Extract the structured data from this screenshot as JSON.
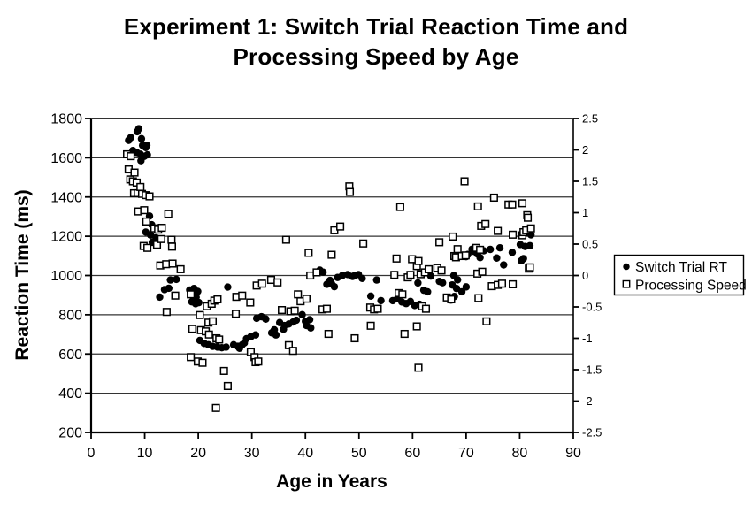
{
  "chart_data": {
    "type": "scatter",
    "title": "Experiment 1: Switch Trial Reaction Time and Processing Speed by Age",
    "xlabel": "Age in Years",
    "ylabel_left": "Reaction Time (ms)",
    "xlim": [
      0,
      90
    ],
    "xticks": [
      0,
      10,
      20,
      30,
      40,
      50,
      60,
      70,
      80,
      90
    ],
    "ylim_left": [
      200,
      1800
    ],
    "yticks_left": [
      200,
      400,
      600,
      800,
      1000,
      1200,
      1400,
      1600,
      1800
    ],
    "ylim_right": [
      -2.5,
      2.5
    ],
    "yticks_right": [
      "2.5",
      "2",
      "1.5",
      "1",
      "0.5",
      "0",
      "-0.5",
      "-1",
      "-1.5",
      "-2",
      "-2.5"
    ],
    "grid": "horizontal",
    "legend_position": "right-middle",
    "colors": {
      "marker": "#000000",
      "background": "#ffffff",
      "grid": "#333333"
    },
    "series": [
      {
        "name": "Switch Trial RT",
        "marker": "filled-circle",
        "axis": "left",
        "points": [
          [
            7.0,
            1689
          ],
          [
            7.4,
            1703
          ],
          [
            7.8,
            1637
          ],
          [
            8.5,
            1627
          ],
          [
            8.6,
            1733
          ],
          [
            8.9,
            1748
          ],
          [
            9.2,
            1618
          ],
          [
            9.3,
            1585
          ],
          [
            9.4,
            1697
          ],
          [
            9.6,
            1663
          ],
          [
            9.9,
            1607
          ],
          [
            10.2,
            1652
          ],
          [
            10.4,
            1664
          ],
          [
            10.5,
            1615
          ],
          [
            10.2,
            1221
          ],
          [
            10.9,
            1303
          ],
          [
            11.1,
            1206
          ],
          [
            11.3,
            1259
          ],
          [
            11.4,
            1169
          ],
          [
            12.1,
            1192
          ],
          [
            12.8,
            890
          ],
          [
            13.7,
            928
          ],
          [
            14.5,
            935
          ],
          [
            14.8,
            977
          ],
          [
            15.9,
            980
          ],
          [
            18.4,
            926
          ],
          [
            18.8,
            866
          ],
          [
            18.9,
            896
          ],
          [
            19.2,
            934
          ],
          [
            19.5,
            856
          ],
          [
            19.6,
            889
          ],
          [
            19.9,
            919
          ],
          [
            20.1,
            862
          ],
          [
            20.3,
            669
          ],
          [
            21.1,
            654
          ],
          [
            21.9,
            647
          ],
          [
            22.7,
            639
          ],
          [
            23.6,
            635
          ],
          [
            24.4,
            632
          ],
          [
            25.2,
            635
          ],
          [
            25.5,
            941
          ],
          [
            26.6,
            647
          ],
          [
            27.4,
            639
          ],
          [
            27.7,
            629
          ],
          [
            28.2,
            647
          ],
          [
            28.6,
            656
          ],
          [
            29.0,
            678
          ],
          [
            29.8,
            688
          ],
          [
            30.7,
            697
          ],
          [
            30.9,
            782
          ],
          [
            31.8,
            790
          ],
          [
            32.6,
            778
          ],
          [
            33.7,
            708
          ],
          [
            34.2,
            723
          ],
          [
            34.5,
            697
          ],
          [
            35.2,
            760
          ],
          [
            35.9,
            726
          ],
          [
            36.1,
            745
          ],
          [
            36.9,
            753
          ],
          [
            37.7,
            763
          ],
          [
            38.3,
            772
          ],
          [
            39.4,
            800
          ],
          [
            40.0,
            767
          ],
          [
            40.2,
            745
          ],
          [
            40.8,
            775
          ],
          [
            41.0,
            733
          ],
          [
            42.7,
            1027
          ],
          [
            43.3,
            1017
          ],
          [
            44.0,
            955
          ],
          [
            44.6,
            975
          ],
          [
            44.9,
            958
          ],
          [
            45.4,
            943
          ],
          [
            46.0,
            990
          ],
          [
            46.9,
            1000
          ],
          [
            47.9,
            1005
          ],
          [
            48.8,
            995
          ],
          [
            49.9,
            1005
          ],
          [
            49.2,
            1000
          ],
          [
            50.6,
            985
          ],
          [
            52.2,
            895
          ],
          [
            53.3,
            977
          ],
          [
            54.1,
            872
          ],
          [
            56.3,
            872
          ],
          [
            57.2,
            883
          ],
          [
            58.0,
            865
          ],
          [
            58.8,
            857
          ],
          [
            59.6,
            868
          ],
          [
            60.4,
            847
          ],
          [
            61.0,
            962
          ],
          [
            61.3,
            853
          ],
          [
            62.1,
            925
          ],
          [
            62.8,
            917
          ],
          [
            63.4,
            997
          ],
          [
            65.0,
            970
          ],
          [
            65.6,
            963
          ],
          [
            67.2,
            875
          ],
          [
            67.4,
            952
          ],
          [
            67.7,
            1000
          ],
          [
            67.8,
            893
          ],
          [
            68.2,
            934
          ],
          [
            68.4,
            978
          ],
          [
            69.2,
            917
          ],
          [
            70.0,
            942
          ],
          [
            70.0,
            1096
          ],
          [
            70.3,
            1107
          ],
          [
            71.1,
            1134
          ],
          [
            71.4,
            1123
          ],
          [
            72.1,
            1110
          ],
          [
            72.6,
            1091
          ],
          [
            73.3,
            1126
          ],
          [
            74.5,
            1133
          ],
          [
            75.7,
            1089
          ],
          [
            76.3,
            1141
          ],
          [
            77.0,
            1054
          ],
          [
            78.6,
            1118
          ],
          [
            80.1,
            1158
          ],
          [
            80.3,
            1075
          ],
          [
            80.7,
            1086
          ],
          [
            81.0,
            1148
          ],
          [
            81.9,
            1152
          ],
          [
            82.1,
            1207
          ]
        ]
      },
      {
        "name": "Processing Speed",
        "marker": "open-square",
        "axis": "right",
        "points": [
          [
            6.7,
            1.93
          ],
          [
            7.0,
            1.69
          ],
          [
            7.3,
            1.53
          ],
          [
            7.4,
            1.9
          ],
          [
            7.8,
            1.5
          ],
          [
            8.0,
            1.31
          ],
          [
            8.1,
            1.64
          ],
          [
            8.5,
            1.48
          ],
          [
            8.7,
            1.31
          ],
          [
            8.8,
            1.02
          ],
          [
            9.2,
            1.41
          ],
          [
            9.5,
            1.3
          ],
          [
            9.8,
            0.47
          ],
          [
            9.9,
            1.04
          ],
          [
            10.2,
            1.28
          ],
          [
            10.3,
            0.86
          ],
          [
            10.5,
            0.44
          ],
          [
            10.9,
            1.26
          ],
          [
            11.8,
            0.75
          ],
          [
            12.3,
            0.49
          ],
          [
            12.5,
            0.73
          ],
          [
            12.9,
            0.16
          ],
          [
            13.1,
            0.58
          ],
          [
            13.2,
            0.76
          ],
          [
            14.0,
            0.18
          ],
          [
            14.1,
            -0.58
          ],
          [
            14.4,
            0.98
          ],
          [
            15.0,
            0.57
          ],
          [
            15.1,
            0.46
          ],
          [
            15.2,
            0.19
          ],
          [
            15.7,
            -0.32
          ],
          [
            16.7,
            0.1
          ],
          [
            18.6,
            -0.3
          ],
          [
            18.6,
            -1.3
          ],
          [
            18.9,
            -0.85
          ],
          [
            19.9,
            -1.37
          ],
          [
            20.3,
            -0.63
          ],
          [
            20.5,
            -0.87
          ],
          [
            20.8,
            -1.39
          ],
          [
            21.4,
            -0.89
          ],
          [
            21.6,
            -0.49
          ],
          [
            21.9,
            -0.75
          ],
          [
            22.0,
            -0.94
          ],
          [
            22.5,
            -0.45
          ],
          [
            22.7,
            -0.73
          ],
          [
            23.0,
            -0.4
          ],
          [
            23.3,
            -2.11
          ],
          [
            23.4,
            -1.0
          ],
          [
            23.6,
            -0.38
          ],
          [
            23.9,
            -1.02
          ],
          [
            24.8,
            -1.52
          ],
          [
            25.5,
            -1.76
          ],
          [
            27.0,
            -0.61
          ],
          [
            27.1,
            -0.34
          ],
          [
            28.2,
            -0.32
          ],
          [
            29.7,
            -0.43
          ],
          [
            29.8,
            -1.22
          ],
          [
            30.5,
            -1.3
          ],
          [
            30.7,
            -1.38
          ],
          [
            30.9,
            -0.16
          ],
          [
            31.2,
            -1.37
          ],
          [
            31.9,
            -0.13
          ],
          [
            33.6,
            -0.07
          ],
          [
            34.8,
            -0.11
          ],
          [
            35.6,
            -0.55
          ],
          [
            36.4,
            0.57
          ],
          [
            36.9,
            -1.11
          ],
          [
            37.2,
            -0.57
          ],
          [
            37.7,
            -1.2
          ],
          [
            38.0,
            -0.56
          ],
          [
            38.6,
            -0.3
          ],
          [
            39.1,
            -0.41
          ],
          [
            40.2,
            -0.37
          ],
          [
            40.6,
            0.36
          ],
          [
            40.9,
            0.0
          ],
          [
            42.1,
            0.05
          ],
          [
            43.2,
            -0.54
          ],
          [
            44.0,
            -0.53
          ],
          [
            44.3,
            -0.93
          ],
          [
            44.9,
            0.33
          ],
          [
            45.4,
            0.72
          ],
          [
            46.5,
            0.78
          ],
          [
            48.2,
            1.42
          ],
          [
            48.3,
            1.33
          ],
          [
            49.2,
            -1.0
          ],
          [
            50.8,
            0.51
          ],
          [
            52.1,
            -0.51
          ],
          [
            52.2,
            -0.8
          ],
          [
            52.8,
            -0.54
          ],
          [
            53.5,
            -0.53
          ],
          [
            56.6,
            0.01
          ],
          [
            57.0,
            0.27
          ],
          [
            57.4,
            -0.28
          ],
          [
            57.7,
            1.09
          ],
          [
            58.1,
            -0.3
          ],
          [
            58.5,
            -0.93
          ],
          [
            59.1,
            -0.03
          ],
          [
            59.6,
            0.01
          ],
          [
            59.9,
            0.26
          ],
          [
            60.8,
            0.15
          ],
          [
            60.8,
            -0.81
          ],
          [
            61.1,
            0.23
          ],
          [
            61.1,
            -1.47
          ],
          [
            61.5,
            0.02
          ],
          [
            61.8,
            -0.49
          ],
          [
            62.3,
            0.05
          ],
          [
            62.5,
            -0.53
          ],
          [
            63.0,
            0.1
          ],
          [
            64.6,
            0.12
          ],
          [
            65.0,
            0.53
          ],
          [
            65.4,
            0.08
          ],
          [
            66.4,
            -0.35
          ],
          [
            67.2,
            -0.38
          ],
          [
            67.5,
            0.62
          ],
          [
            67.8,
            0.31
          ],
          [
            68.1,
            0.29
          ],
          [
            68.4,
            0.42
          ],
          [
            69.2,
            0.31
          ],
          [
            69.7,
            1.5
          ],
          [
            69.9,
            0.32
          ],
          [
            71.9,
            0.44
          ],
          [
            72.1,
            0.03
          ],
          [
            72.2,
            1.1
          ],
          [
            72.3,
            -0.36
          ],
          [
            72.6,
            0.41
          ],
          [
            72.8,
            0.79
          ],
          [
            73.0,
            0.06
          ],
          [
            73.6,
            0.82
          ],
          [
            73.8,
            -0.73
          ],
          [
            74.8,
            -0.17
          ],
          [
            75.2,
            1.24
          ],
          [
            75.9,
            0.71
          ],
          [
            75.9,
            -0.15
          ],
          [
            76.7,
            -0.13
          ],
          [
            77.9,
            1.13
          ],
          [
            78.6,
            1.13
          ],
          [
            78.7,
            0.65
          ],
          [
            78.7,
            -0.14
          ],
          [
            80.5,
            1.15
          ],
          [
            80.5,
            0.64
          ],
          [
            80.7,
            0.69
          ],
          [
            81.2,
            0.72
          ],
          [
            81.4,
            0.96
          ],
          [
            81.5,
            0.92
          ],
          [
            81.7,
            0.11
          ],
          [
            81.9,
            0.13
          ],
          [
            82.1,
            0.75
          ]
        ]
      }
    ]
  }
}
